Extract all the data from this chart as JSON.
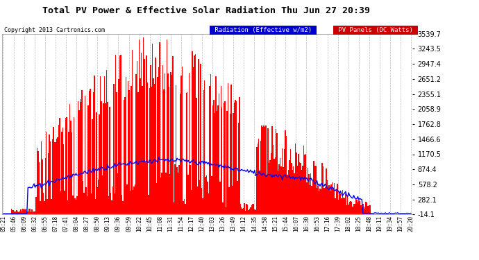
{
  "title": "Total PV Power & Effective Solar Radiation Thu Jun 27 20:39",
  "copyright": "Copyright 2013 Cartronics.com",
  "legend_radiation": "Radiation (Effective w/m2)",
  "legend_pv": "PV Panels (DC Watts)",
  "bg_color": "#ffffff",
  "plot_bg_color": "#ffffff",
  "grid_color": "#aaaaaa",
  "title_color": "#000000",
  "copyright_color": "#000000",
  "radiation_color": "#0000ff",
  "pv_color": "#ff0000",
  "legend_radiation_bg": "#0000cc",
  "legend_pv_bg": "#cc0000",
  "ymin": -14.1,
  "ymax": 3539.7,
  "yticks": [
    -14.1,
    282.1,
    578.2,
    874.4,
    1170.5,
    1466.6,
    1762.8,
    2058.9,
    2355.1,
    2651.2,
    2947.4,
    3243.5,
    3539.7
  ],
  "xtick_labels": [
    "05:21",
    "05:46",
    "06:09",
    "06:32",
    "06:55",
    "07:18",
    "07:41",
    "08:04",
    "08:27",
    "08:50",
    "09:13",
    "09:36",
    "09:59",
    "10:22",
    "10:45",
    "11:08",
    "11:31",
    "11:54",
    "12:17",
    "12:40",
    "13:03",
    "13:26",
    "13:49",
    "14:12",
    "14:35",
    "14:58",
    "15:21",
    "15:44",
    "16:07",
    "16:30",
    "16:53",
    "17:16",
    "17:39",
    "18:02",
    "18:25",
    "18:48",
    "19:11",
    "19:34",
    "19:57",
    "20:20"
  ],
  "n_points": 400
}
